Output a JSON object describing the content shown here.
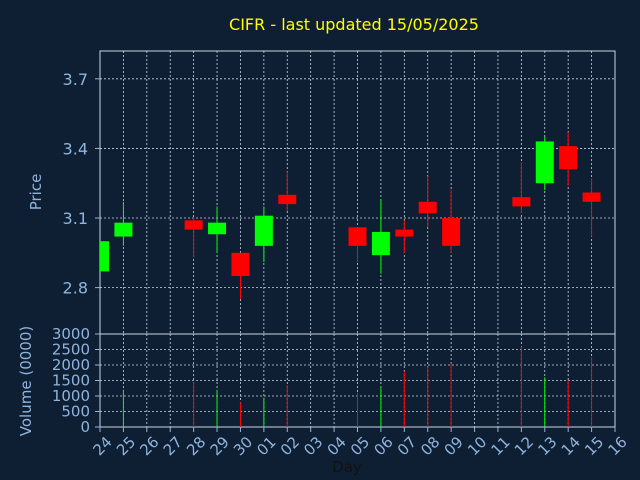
{
  "chart_data": {
    "type": "candlestick",
    "title": "CIFR - last updated 15/05/2025",
    "xlabel": "Day",
    "price_panel": {
      "ylabel": "Price",
      "ylim": [
        2.6,
        3.82
      ],
      "yticks": [
        "2.8",
        "3.1",
        "3.4",
        "3.7"
      ],
      "ytick_values": [
        2.8,
        3.1,
        3.4,
        3.7
      ]
    },
    "volume_panel": {
      "ylabel": "Volume (0000)",
      "ylim": [
        0,
        3000
      ],
      "yticks": [
        "0",
        "500",
        "1000",
        "1500",
        "2000",
        "2500",
        "3000"
      ],
      "ytick_values": [
        0,
        500,
        1000,
        1500,
        2000,
        2500,
        3000
      ]
    },
    "x_ticks": [
      "24",
      "25",
      "26",
      "27",
      "28",
      "29",
      "30",
      "01",
      "02",
      "03",
      "04",
      "05",
      "06",
      "07",
      "08",
      "09",
      "10",
      "11",
      "12",
      "13",
      "14",
      "15",
      "16"
    ],
    "up_color": "#00ff00",
    "down_color": "#ff0000",
    "candles": [
      {
        "x": "24",
        "open": 2.87,
        "close": 3.0,
        "high": 3.0,
        "low": 2.87,
        "volume": 0
      },
      {
        "x": "25",
        "open": 3.02,
        "close": 3.08,
        "high": 3.17,
        "low": 2.98,
        "volume": 1200
      },
      {
        "x": "28",
        "open": 3.09,
        "close": 3.05,
        "high": 3.1,
        "low": 2.93,
        "volume": 1450
      },
      {
        "x": "29",
        "open": 3.03,
        "close": 3.08,
        "high": 3.15,
        "low": 2.95,
        "volume": 1200
      },
      {
        "x": "30",
        "open": 2.95,
        "close": 2.85,
        "high": 2.95,
        "low": 2.75,
        "volume": 800
      },
      {
        "x": "01",
        "open": 2.98,
        "close": 3.11,
        "high": 3.15,
        "low": 2.91,
        "volume": 950
      },
      {
        "x": "02",
        "open": 3.2,
        "close": 3.16,
        "high": 3.3,
        "low": 3.13,
        "volume": 1350
      },
      {
        "x": "05",
        "open": 3.06,
        "close": 2.98,
        "high": 3.06,
        "low": 2.91,
        "volume": 1100
      },
      {
        "x": "06",
        "open": 2.94,
        "close": 3.04,
        "high": 3.18,
        "low": 2.86,
        "volume": 1300
      },
      {
        "x": "07",
        "open": 3.05,
        "close": 3.02,
        "high": 3.09,
        "low": 2.95,
        "volume": 1800
      },
      {
        "x": "08",
        "open": 3.17,
        "close": 3.12,
        "high": 3.28,
        "low": 3.06,
        "volume": 1950
      },
      {
        "x": "09",
        "open": 3.1,
        "close": 2.98,
        "high": 3.22,
        "low": 2.95,
        "volume": 2050
      },
      {
        "x": "12",
        "open": 3.19,
        "close": 3.15,
        "high": 3.34,
        "low": 3.12,
        "volume": 2600
      },
      {
        "x": "13",
        "open": 3.25,
        "close": 3.43,
        "high": 3.45,
        "low": 3.22,
        "volume": 1600
      },
      {
        "x": "14",
        "open": 3.41,
        "close": 3.31,
        "high": 3.47,
        "low": 3.24,
        "volume": 1500
      },
      {
        "x": "15",
        "open": 3.21,
        "close": 3.17,
        "high": 3.27,
        "low": 3.02,
        "volume": 2250
      }
    ]
  }
}
